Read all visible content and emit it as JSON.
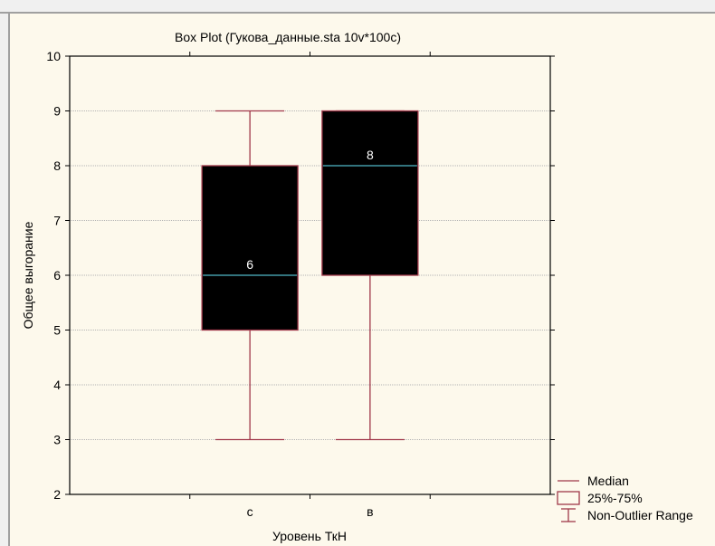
{
  "chart_data": {
    "type": "box",
    "title": "Box Plot (Гукова_данные.sta 10v*100c)",
    "xlabel": "Уровень ТкН",
    "ylabel": "Общее выгорание",
    "ylim": [
      2,
      10
    ],
    "yticks": [
      "2",
      "3",
      "4",
      "5",
      "6",
      "7",
      "8",
      "9",
      "10"
    ],
    "categories": [
      "с",
      "в"
    ],
    "boxes": [
      {
        "category": "с",
        "min": 3,
        "q1": 5,
        "median": 6,
        "q3": 8,
        "max": 9,
        "median_label": "6"
      },
      {
        "category": "в",
        "min": 3,
        "q1": 6,
        "median": 8,
        "q3": 9,
        "max": 9,
        "median_label": "8"
      }
    ],
    "legend": {
      "position": "bottom-right",
      "items": [
        {
          "symbol": "line",
          "label": "Median"
        },
        {
          "symbol": "box",
          "label": "25%-75%"
        },
        {
          "symbol": "whisker",
          "label": "Non-Outlier Range"
        }
      ]
    },
    "grid": true,
    "colors": {
      "background": "#fdf9ec",
      "box_fill": "#000000",
      "box_edge": "#a0384a",
      "median_line": "#4fb8c8",
      "whisker": "#a0384a",
      "grid": "#b4b4b4",
      "axis": "#000000",
      "window_border": "#a0a0a0"
    }
  }
}
